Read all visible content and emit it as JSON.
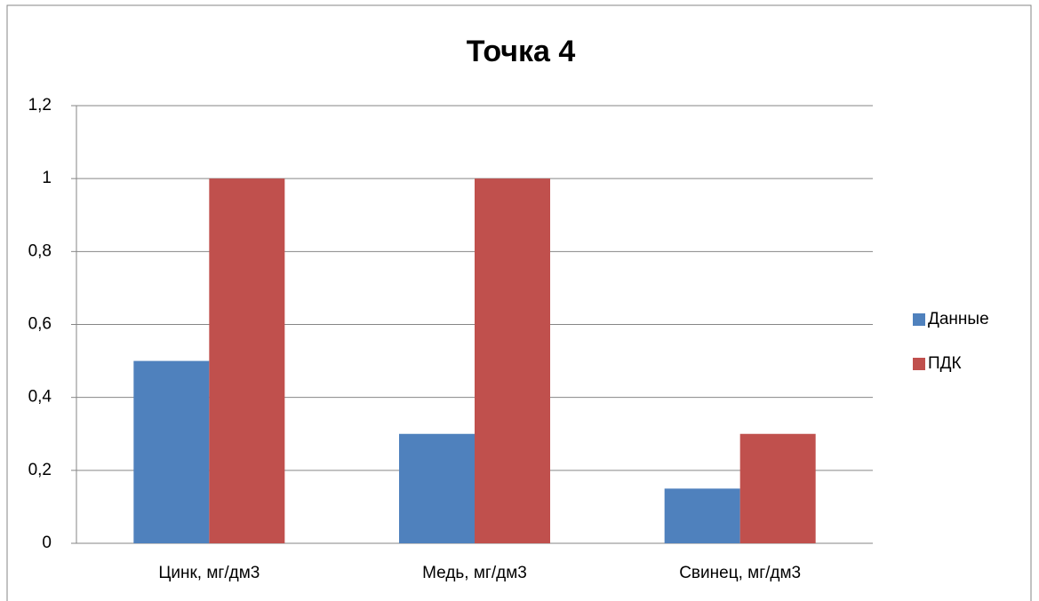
{
  "chart_data": {
    "type": "bar",
    "title": "Точка 4",
    "categories": [
      "Цинк, мг/дм3",
      "Медь, мг/дм3",
      "Свинец, мг/дм3"
    ],
    "series": [
      {
        "name": "Данные",
        "color": "#4f81bd",
        "values": [
          0.5,
          0.3,
          0.15
        ]
      },
      {
        "name": "ПДК",
        "color": "#c0504d",
        "values": [
          1,
          1,
          0.3
        ]
      }
    ],
    "ylim": [
      0,
      1.2
    ],
    "yticks": [
      0,
      {
        "value": 0.2,
        "label": "0,2"
      },
      {
        "value": 0.4,
        "label": "0,4"
      },
      {
        "value": 0.6,
        "label": "0,6"
      },
      {
        "value": 0.8,
        "label": "0,8"
      },
      1,
      {
        "value": 1.2,
        "label": "1,2"
      }
    ],
    "grid": true,
    "legend": "right"
  }
}
